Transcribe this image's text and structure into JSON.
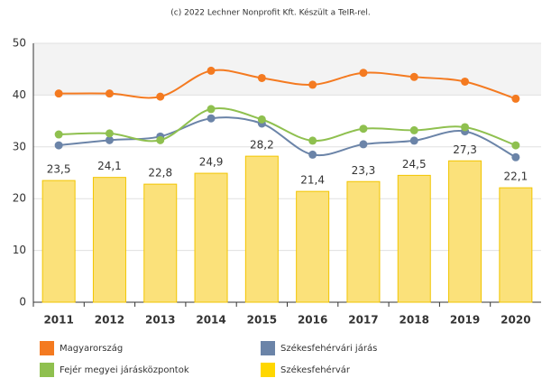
{
  "chart_data": {
    "type": "bar_line",
    "title": "(c) 2022 Lechner Nonprofit Kft. Készült a TeIR-rel.",
    "categories": [
      "2011",
      "2012",
      "2013",
      "2014",
      "2015",
      "2016",
      "2017",
      "2018",
      "2019",
      "2020"
    ],
    "ylim": [
      0,
      50
    ],
    "yticks": [
      0,
      10,
      20,
      30,
      40,
      50
    ],
    "grid": true,
    "series": [
      {
        "name": "Magyarország",
        "type": "line",
        "color": "#f47a20",
        "values": [
          40.3,
          40.3,
          39.7,
          44.7,
          43.3,
          42.0,
          44.3,
          43.5,
          42.6,
          39.3
        ]
      },
      {
        "name": "Székesfehérvári járás",
        "type": "line",
        "color": "#6b84a8",
        "values": [
          30.3,
          31.3,
          32.0,
          35.5,
          34.5,
          28.5,
          30.5,
          31.2,
          33.0,
          28.0
        ]
      },
      {
        "name": "Fejér megyei járásközpontok",
        "type": "line",
        "color": "#8fc04f",
        "values": [
          32.4,
          32.6,
          31.3,
          37.3,
          35.3,
          31.2,
          33.5,
          33.2,
          33.8,
          30.3
        ]
      },
      {
        "name": "Székesfehérvár",
        "type": "bar",
        "color": "#fbe17a",
        "values": [
          23.5,
          24.1,
          22.8,
          24.9,
          28.2,
          21.4,
          23.3,
          24.5,
          27.3,
          22.1
        ],
        "value_labels": [
          "23,5",
          "24,1",
          "22,8",
          "24,9",
          "28,2",
          "21,4",
          "23,3",
          "24,5",
          "27,3",
          "22,1"
        ]
      }
    ]
  }
}
